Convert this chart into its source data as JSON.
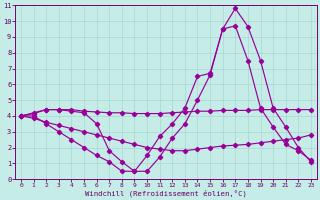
{
  "bg_color": "#c5ece6",
  "grid_color": "#a8d8d0",
  "line_color": "#990099",
  "xlabel": "Windchill (Refroidissement éolien,°C)",
  "xlim": [
    -0.5,
    23.5
  ],
  "ylim": [
    0,
    11
  ],
  "xticks": [
    0,
    1,
    2,
    3,
    4,
    5,
    6,
    7,
    8,
    9,
    10,
    11,
    12,
    13,
    14,
    15,
    16,
    17,
    18,
    19,
    20,
    21,
    22,
    23
  ],
  "yticks": [
    0,
    1,
    2,
    3,
    4,
    5,
    6,
    7,
    8,
    9,
    10,
    11
  ],
  "lines": [
    {
      "x": [
        0,
        1,
        2,
        3,
        4,
        5,
        6,
        7,
        8,
        9,
        10,
        11,
        12,
        13,
        14,
        15,
        16,
        17,
        18,
        19,
        20,
        21,
        22,
        23
      ],
      "y": [
        4.0,
        4.15,
        4.4,
        4.4,
        4.4,
        4.3,
        4.25,
        4.2,
        4.2,
        4.15,
        4.15,
        4.15,
        4.2,
        4.25,
        4.3,
        4.3,
        4.35,
        4.35,
        4.35,
        4.4,
        4.4,
        4.4,
        4.4,
        4.4
      ]
    },
    {
      "x": [
        0,
        1,
        2,
        3,
        4,
        5,
        6,
        7,
        8,
        9,
        10,
        11,
        12,
        13,
        14,
        15,
        16,
        17,
        18,
        19,
        20,
        21,
        22,
        23
      ],
      "y": [
        4.0,
        3.85,
        3.6,
        3.4,
        3.2,
        3.0,
        2.8,
        2.6,
        2.4,
        2.2,
        2.0,
        1.9,
        1.8,
        1.8,
        1.9,
        2.0,
        2.1,
        2.15,
        2.2,
        2.3,
        2.4,
        2.5,
        2.6,
        2.8
      ]
    },
    {
      "x": [
        0,
        1,
        2,
        3,
        4,
        5,
        6,
        7,
        8,
        9,
        10,
        11,
        12,
        13,
        14,
        15,
        16,
        17,
        18,
        19,
        20,
        21,
        22,
        23
      ],
      "y": [
        4.0,
        4.2,
        4.4,
        4.4,
        4.3,
        4.2,
        3.5,
        1.8,
        1.1,
        0.5,
        0.5,
        1.4,
        2.6,
        3.5,
        5.0,
        6.6,
        9.5,
        10.8,
        9.65,
        7.5,
        4.5,
        3.3,
        2.0,
        1.1
      ]
    },
    {
      "x": [
        0,
        1,
        2,
        3,
        4,
        5,
        6,
        7,
        8,
        9,
        10,
        11,
        12,
        13,
        14,
        15,
        16,
        17,
        18,
        19,
        20,
        21,
        22,
        23
      ],
      "y": [
        4.0,
        4.0,
        3.5,
        3.0,
        2.5,
        2.0,
        1.5,
        1.1,
        0.5,
        0.5,
        1.5,
        2.7,
        3.5,
        4.5,
        6.5,
        6.7,
        9.5,
        9.7,
        7.5,
        4.5,
        3.3,
        2.2,
        1.8,
        1.2
      ]
    }
  ]
}
